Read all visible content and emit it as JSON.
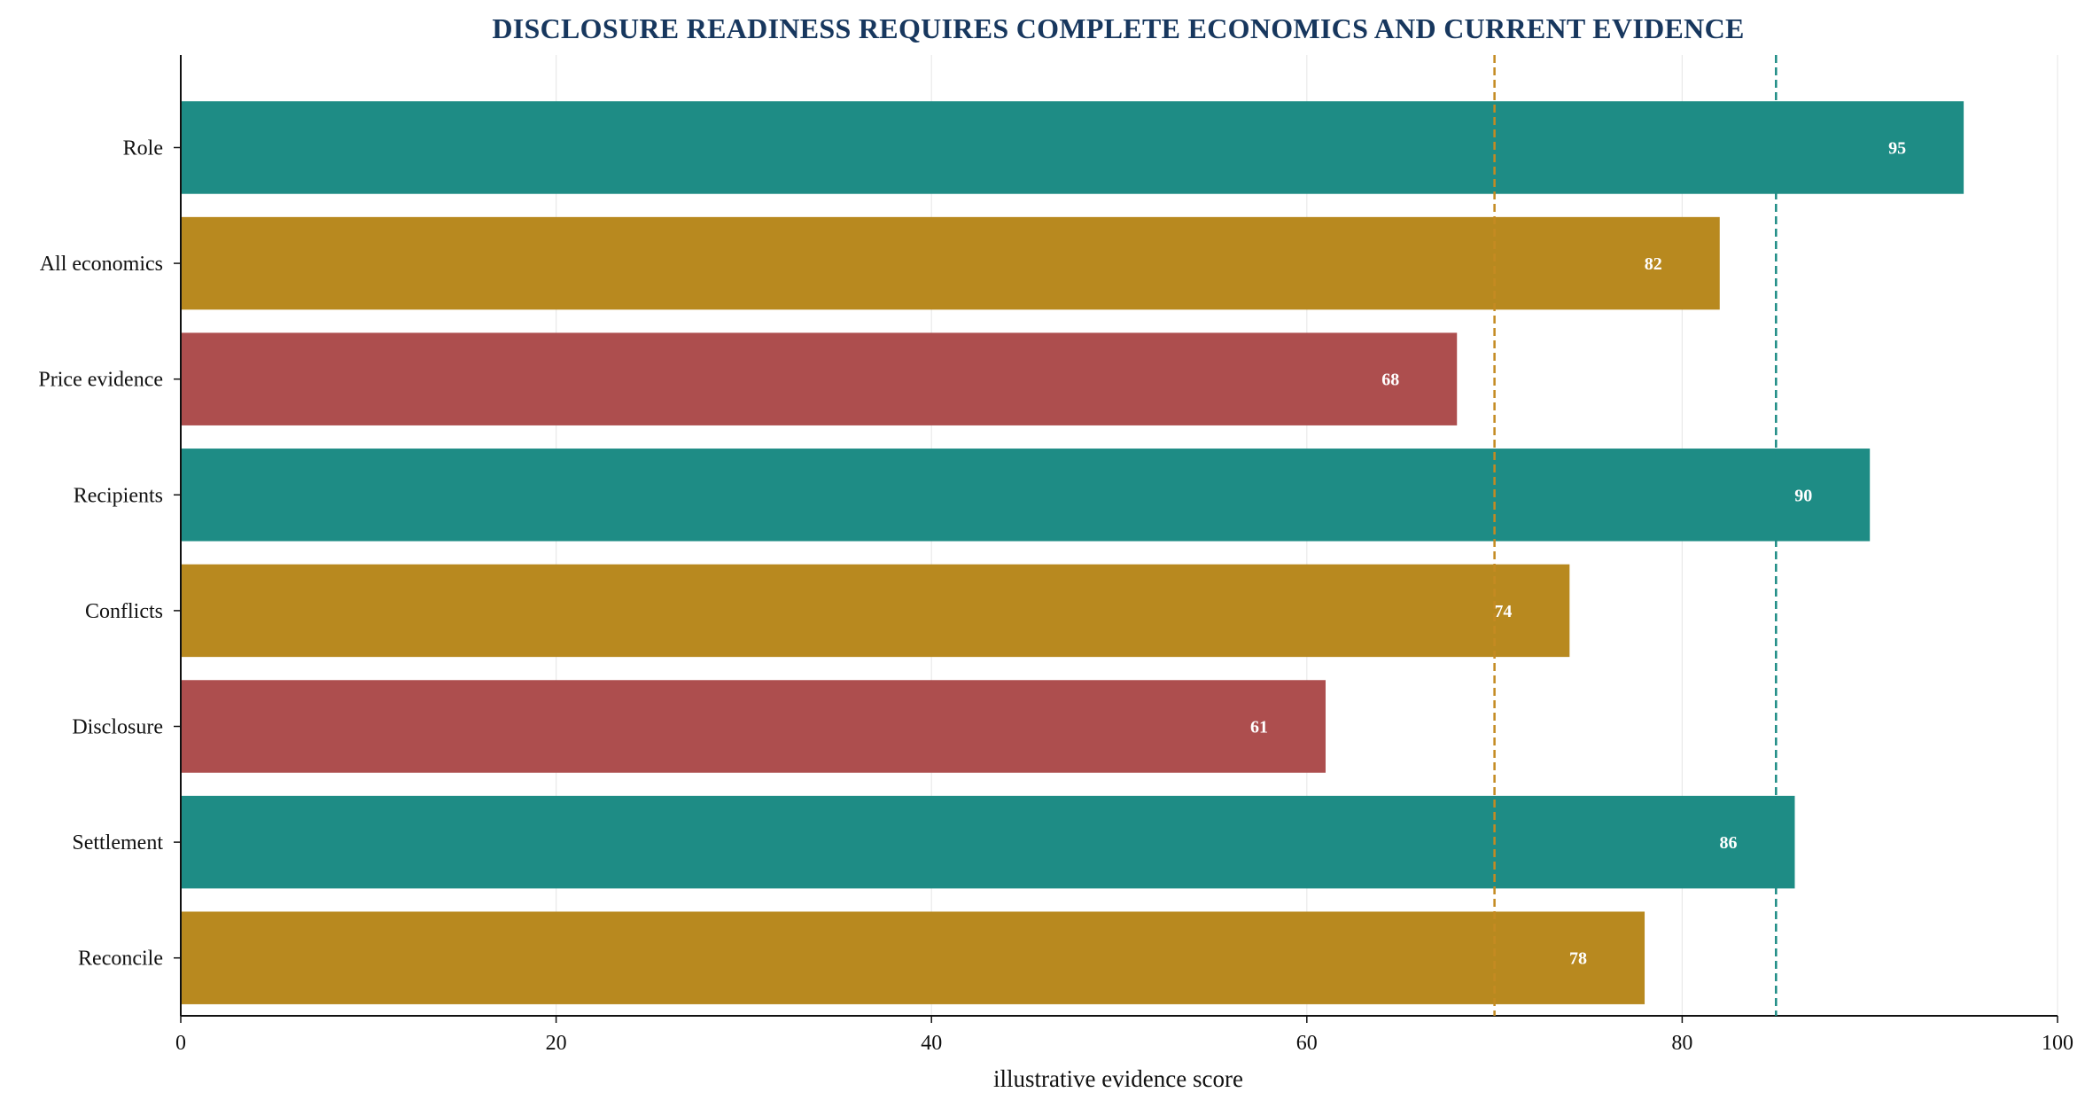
{
  "chart_data": {
    "type": "bar",
    "orientation": "horizontal",
    "title": "DISCLOSURE READINESS REQUIRES COMPLETE ECONOMICS AND CURRENT EVIDENCE",
    "xlabel": "illustrative evidence score",
    "ylabel": "",
    "xlim": [
      0,
      100
    ],
    "xticks": [
      0,
      20,
      40,
      60,
      80,
      100
    ],
    "grid": "vertical, light",
    "categories": [
      "Role",
      "All economics",
      "Price evidence",
      "Recipients",
      "Conflicts",
      "Disclosure",
      "Settlement",
      "Reconcile"
    ],
    "values": [
      95,
      82,
      68,
      90,
      74,
      61,
      86,
      78
    ],
    "bar_colors": [
      "#1e8c85",
      "#b8891f",
      "#ad4e4e",
      "#1e8c85",
      "#b8891f",
      "#ad4e4e",
      "#1e8c85",
      "#b8891f"
    ],
    "reference_lines": [
      {
        "value": 70,
        "color": "#c48a22",
        "style": "dashed"
      },
      {
        "value": 85,
        "color": "#1e8c85",
        "style": "dashed"
      }
    ]
  }
}
